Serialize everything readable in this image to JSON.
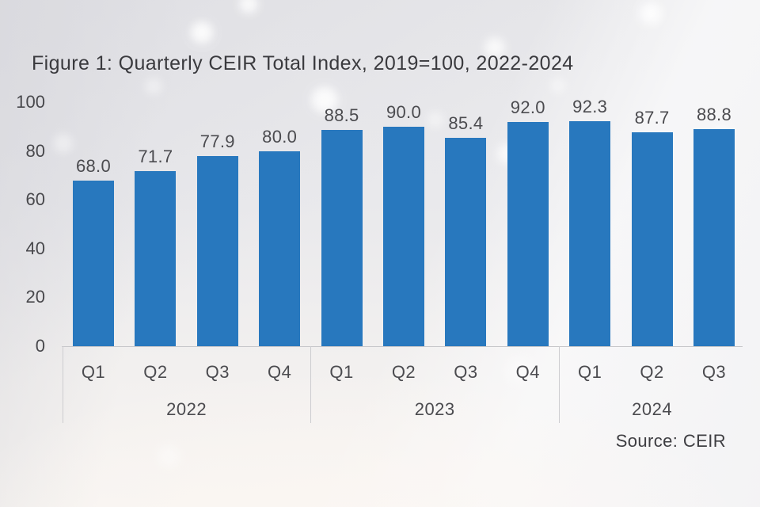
{
  "figure": {
    "title": "Figure 1: Quarterly CEIR Total Index, 2019=100, 2022-2024",
    "source": "Source: CEIR"
  },
  "chart_data": {
    "type": "bar",
    "title": "Figure 1: Quarterly CEIR Total Index, 2019=100, 2022-2024",
    "categories": [
      "Q1",
      "Q2",
      "Q3",
      "Q4",
      "Q1",
      "Q2",
      "Q3",
      "Q4",
      "Q1",
      "Q2",
      "Q3"
    ],
    "values": [
      68.0,
      71.7,
      77.9,
      80.0,
      88.5,
      90.0,
      85.4,
      92.0,
      92.3,
      87.7,
      88.8
    ],
    "value_labels": [
      "68.0",
      "71.7",
      "77.9",
      "80.0",
      "88.5",
      "90.0",
      "85.4",
      "92.0",
      "92.3",
      "87.7",
      "88.8"
    ],
    "groups": [
      {
        "label": "2022",
        "span": [
          0,
          3
        ]
      },
      {
        "label": "2023",
        "span": [
          4,
          7
        ]
      },
      {
        "label": "2024",
        "span": [
          8,
          10
        ]
      }
    ],
    "y_ticks": [
      0,
      20,
      40,
      60,
      80,
      100
    ],
    "ylim": [
      0,
      100
    ],
    "xlabel": "",
    "ylabel": "",
    "grid": false,
    "legend": false,
    "bar_color": "#2878BE",
    "source": "Source: CEIR"
  }
}
